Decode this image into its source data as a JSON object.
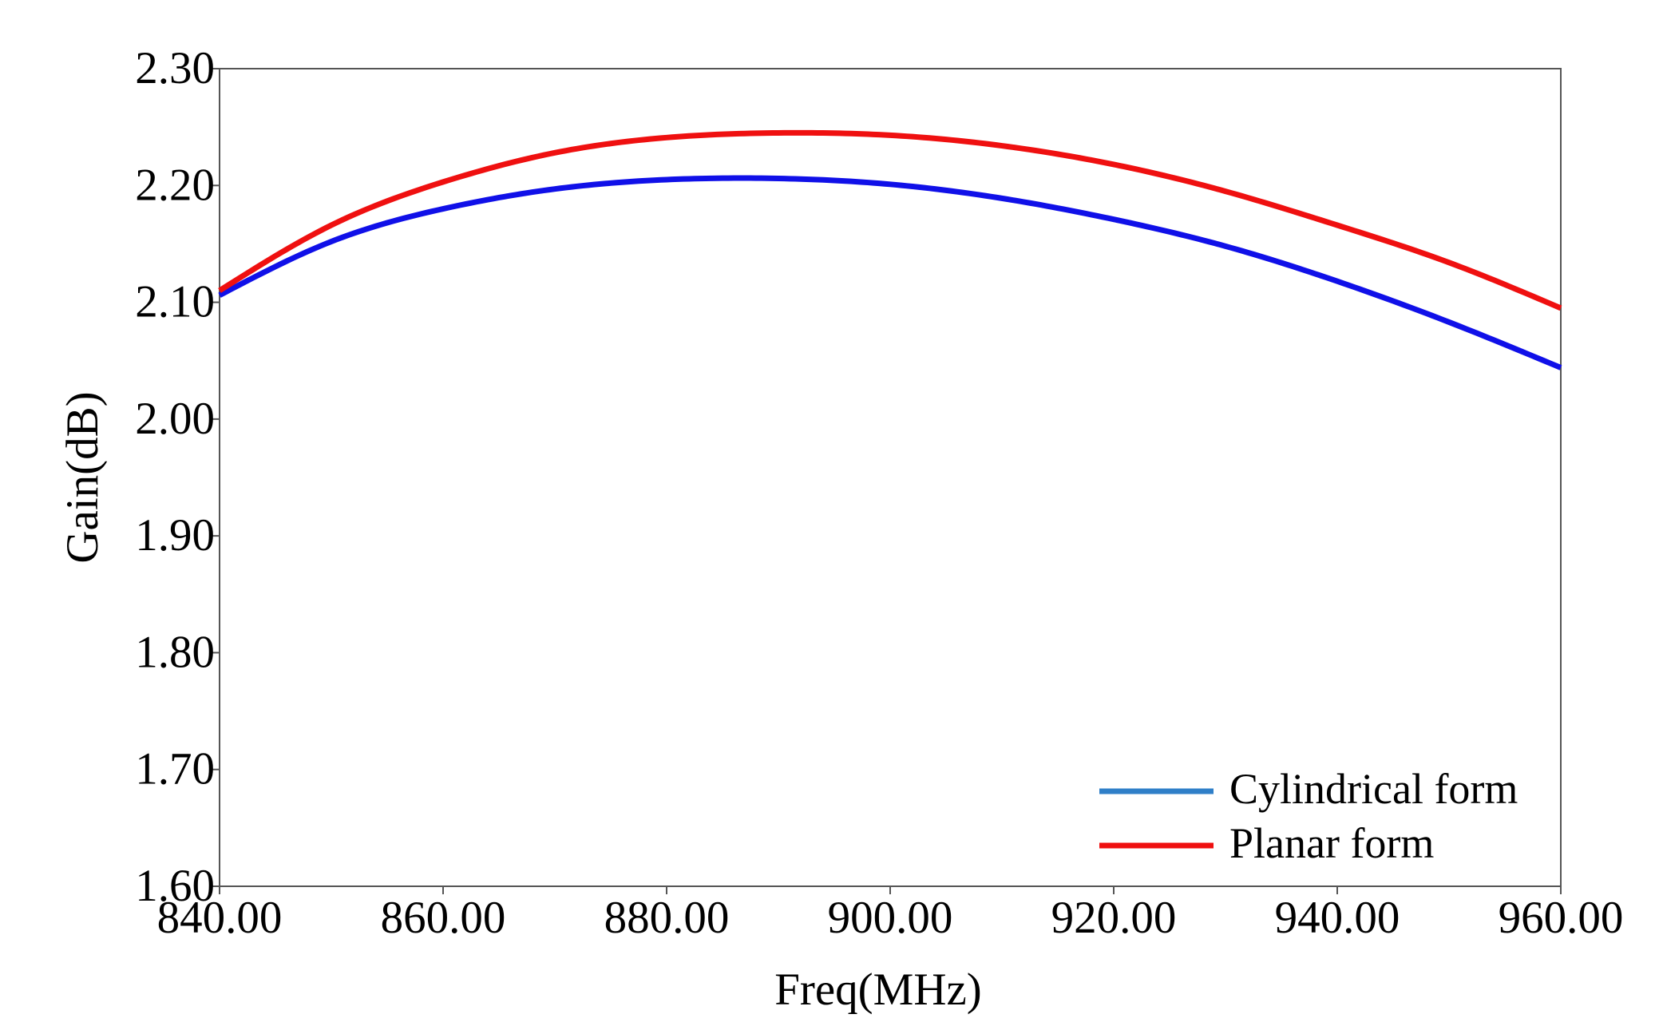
{
  "chart_data": {
    "type": "line",
    "title": "",
    "xlabel": "Freq(MHz)",
    "ylabel": "Gain(dB)",
    "xlim": [
      840,
      960
    ],
    "ylim": [
      1.6,
      2.3
    ],
    "x_ticks": [
      "840.00",
      "860.00",
      "880.00",
      "900.00",
      "920.00",
      "940.00",
      "960.00"
    ],
    "y_ticks": [
      "1.60",
      "1.70",
      "1.80",
      "1.90",
      "2.00",
      "2.10",
      "2.20",
      "2.30"
    ],
    "grid": false,
    "legend_position": "bottom-right",
    "series": [
      {
        "name": "Cylindrical form",
        "color": "#1010e8",
        "legend_color": "#2f7fc8",
        "x": [
          840,
          850,
          860,
          870,
          880,
          890,
          900,
          910,
          920,
          930,
          940,
          950,
          960
        ],
        "y": [
          2.106,
          2.152,
          2.18,
          2.197,
          2.205,
          2.206,
          2.201,
          2.189,
          2.171,
          2.148,
          2.118,
          2.083,
          2.044
        ]
      },
      {
        "name": "Planar form",
        "color": "#ef1010",
        "legend_color": "#ef1010",
        "x": [
          840,
          850,
          860,
          870,
          880,
          890,
          900,
          910,
          920,
          930,
          940,
          950,
          960
        ],
        "y": [
          2.11,
          2.166,
          2.203,
          2.228,
          2.241,
          2.245,
          2.243,
          2.234,
          2.218,
          2.195,
          2.166,
          2.134,
          2.095
        ]
      }
    ]
  }
}
